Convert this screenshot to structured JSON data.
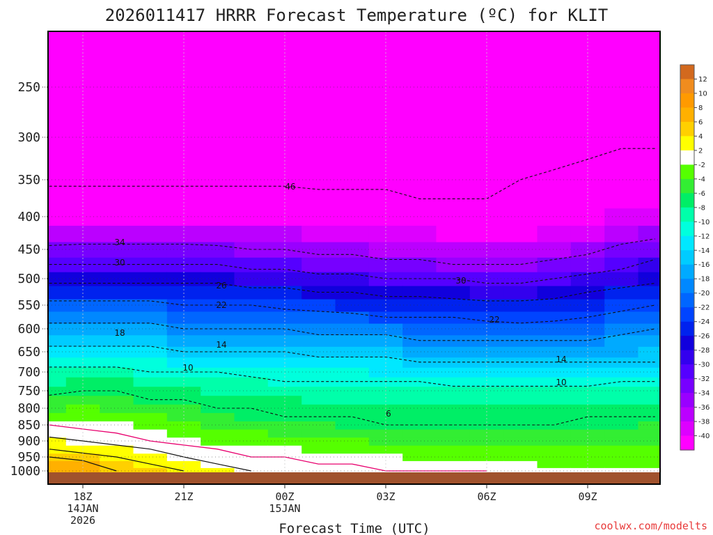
{
  "page": {
    "title": "2026011417 HRRR Forecast Temperature (ºC) for KLIT",
    "credit": "coolwx.com/modelts"
  },
  "chart_data": {
    "type": "heatmap",
    "title": "2026011417 HRRR Forecast Temperature (ºC) for KLIT",
    "xlabel": "Forecast Time (UTC)",
    "ylabel": "",
    "y_ticks": [
      "250",
      "300",
      "350",
      "400",
      "450",
      "500",
      "550",
      "600",
      "650",
      "700",
      "750",
      "800",
      "850",
      "900",
      "950",
      "1000"
    ],
    "x_ticks": [
      {
        "label": "18Z",
        "line2": "14JAN",
        "line3": "2026"
      },
      {
        "label": "21Z",
        "line2": "",
        "line3": ""
      },
      {
        "label": "00Z",
        "line2": "15JAN",
        "line3": ""
      },
      {
        "label": "03Z",
        "line2": "",
        "line3": ""
      },
      {
        "label": "06Z",
        "line2": "",
        "line3": ""
      },
      {
        "label": "09Z",
        "line2": "",
        "line3": ""
      }
    ],
    "x_hours": [
      17,
      18,
      19,
      20,
      21,
      22,
      23,
      24,
      25,
      26,
      27,
      28,
      29,
      30,
      31,
      32,
      33,
      34,
      35
    ],
    "levels": [
      1000,
      975,
      950,
      925,
      900,
      875,
      850,
      825,
      800,
      775,
      750,
      725,
      700,
      675,
      650,
      625,
      600,
      575,
      550,
      525,
      500,
      475,
      450,
      425,
      400,
      375,
      350,
      325,
      300,
      275,
      250,
      225,
      200
    ],
    "temperature_profiles": [
      [
        8,
        7,
        6,
        4,
        3,
        1,
        0,
        -2,
        -4,
        -5,
        -7,
        -8,
        -9,
        -11,
        -13,
        -15,
        -17,
        -19,
        -21,
        -24,
        -27,
        -30,
        -33,
        -37,
        -40,
        -44,
        -47,
        -50,
        -51,
        -51,
        -51,
        -50,
        -49
      ],
      [
        8,
        7,
        5,
        3,
        2,
        1,
        -1,
        -2,
        -3,
        -5,
        -6,
        -7,
        -9,
        -11,
        -13,
        -15,
        -17,
        -19,
        -21,
        -24,
        -27,
        -30,
        -33,
        -36,
        -40,
        -44,
        -47,
        -49,
        -50,
        -50,
        -50,
        -51,
        -50
      ],
      [
        6,
        5,
        4,
        3,
        1,
        0,
        -1,
        -3,
        -4,
        -5,
        -6,
        -7,
        -9,
        -11,
        -13,
        -15,
        -17,
        -19,
        -21,
        -24,
        -27,
        -30,
        -33,
        -36,
        -40,
        -44,
        -47,
        -49,
        -50,
        -50,
        -50,
        -51,
        -50
      ],
      [
        5,
        4,
        3,
        2,
        0,
        -1,
        -2,
        -3,
        -5,
        -6,
        -7,
        -8,
        -10,
        -11,
        -13,
        -15,
        -17,
        -19,
        -21,
        -24,
        -27,
        -30,
        -33,
        -36,
        -40,
        -44,
        -47,
        -49,
        -50,
        -50,
        -50,
        -51,
        -50
      ],
      [
        4,
        3,
        2,
        1,
        -1,
        -2,
        -3,
        -4,
        -5,
        -6,
        -7,
        -9,
        -10,
        -12,
        -14,
        -16,
        -18,
        -20,
        -22,
        -24,
        -27,
        -30,
        -33,
        -36,
        -40,
        -44,
        -47,
        -49,
        -50,
        -50,
        -50,
        -51,
        -50
      ],
      [
        3,
        2,
        1,
        0,
        -2,
        -3,
        -4,
        -5,
        -6,
        -7,
        -8,
        -9,
        -10,
        -12,
        -14,
        -16,
        -18,
        -20,
        -22,
        -24,
        -27,
        -30,
        -33,
        -37,
        -40,
        -44,
        -47,
        -49,
        -50,
        -50,
        -50,
        -51,
        -50
      ],
      [
        2,
        1,
        0,
        -1,
        -2,
        -3,
        -5,
        -6,
        -6,
        -7,
        -8,
        -9,
        -11,
        -12,
        -14,
        -16,
        -18,
        -20,
        -22,
        -25,
        -28,
        -31,
        -34,
        -37,
        -41,
        -44,
        -47,
        -49,
        -50,
        -50,
        -50,
        -51,
        -50
      ],
      [
        1,
        1,
        0,
        -1,
        -3,
        -4,
        -5,
        -6,
        -7,
        -7,
        -8,
        -10,
        -11,
        -12,
        -14,
        -16,
        -18,
        -20,
        -23,
        -25,
        -28,
        -31,
        -34,
        -37,
        -41,
        -44,
        -47,
        -49,
        -50,
        -50,
        -50,
        -51,
        -50
      ],
      [
        1,
        0,
        -1,
        -2,
        -3,
        -4,
        -5,
        -6,
        -7,
        -8,
        -9,
        -10,
        -11,
        -13,
        -15,
        -17,
        -19,
        -21,
        -23,
        -26,
        -29,
        -32,
        -35,
        -38,
        -41,
        -45,
        -47,
        -49,
        -50,
        -50,
        -50,
        -51,
        -50
      ],
      [
        0,
        0,
        -1,
        -2,
        -3,
        -5,
        -6,
        -6,
        -7,
        -8,
        -9,
        -10,
        -11,
        -13,
        -15,
        -17,
        -19,
        -21,
        -24,
        -26,
        -29,
        -32,
        -35,
        -38,
        -42,
        -45,
        -47,
        -49,
        -50,
        -50,
        -50,
        -51,
        -50
      ],
      [
        0,
        -1,
        -1,
        -3,
        -4,
        -5,
        -6,
        -7,
        -7,
        -8,
        -9,
        -10,
        -12,
        -13,
        -15,
        -17,
        -19,
        -22,
        -24,
        -27,
        -30,
        -33,
        -36,
        -39,
        -42,
        -45,
        -47,
        -49,
        -50,
        -50,
        -50,
        -51,
        -50
      ],
      [
        0,
        -1,
        -2,
        -3,
        -4,
        -5,
        -6,
        -7,
        -7,
        -8,
        -9,
        -10,
        -12,
        -14,
        -16,
        -18,
        -20,
        -22,
        -24,
        -27,
        -30,
        -33,
        -36,
        -39,
        -43,
        -46,
        -47,
        -48,
        -49,
        -50,
        -51,
        -51,
        -50
      ],
      [
        0,
        -1,
        -2,
        -3,
        -4,
        -5,
        -6,
        -7,
        -7,
        -8,
        -9,
        -11,
        -12,
        -14,
        -16,
        -18,
        -20,
        -22,
        -25,
        -27,
        -30,
        -34,
        -37,
        -40,
        -43,
        -46,
        -47,
        -48,
        -49,
        -50,
        -51,
        -51,
        -50
      ],
      [
        0,
        -1,
        -2,
        -3,
        -4,
        -5,
        -6,
        -7,
        -7,
        -8,
        -9,
        -11,
        -12,
        -14,
        -16,
        -18,
        -20,
        -23,
        -25,
        -28,
        -31,
        -34,
        -37,
        -40,
        -43,
        -46,
        -47,
        -48,
        -49,
        -50,
        -51,
        -51,
        -50
      ],
      [
        -1,
        -1,
        -2,
        -3,
        -4,
        -5,
        -6,
        -7,
        -7,
        -8,
        -9,
        -11,
        -12,
        -14,
        -16,
        -18,
        -21,
        -23,
        -25,
        -28,
        -31,
        -34,
        -37,
        -40,
        -43,
        -45,
        -46,
        -47,
        -49,
        -50,
        -51,
        -51,
        -50
      ],
      [
        -1,
        -2,
        -2,
        -3,
        -4,
        -5,
        -6,
        -7,
        -7,
        -8,
        -9,
        -11,
        -12,
        -14,
        -16,
        -18,
        -20,
        -23,
        -25,
        -27,
        -30,
        -33,
        -36,
        -39,
        -42,
        -44,
        -45,
        -47,
        -48,
        -50,
        -51,
        -51,
        -50
      ],
      [
        -1,
        -2,
        -2,
        -3,
        -4,
        -5,
        -6,
        -6,
        -7,
        -8,
        -9,
        -11,
        -12,
        -14,
        -16,
        -18,
        -20,
        -22,
        -24,
        -26,
        -29,
        -32,
        -35,
        -38,
        -41,
        -43,
        -44,
        -46,
        -48,
        -49,
        -51,
        -51,
        -50
      ],
      [
        -1,
        -2,
        -2,
        -3,
        -4,
        -5,
        -6,
        -6,
        -7,
        -8,
        -9,
        -10,
        -12,
        -14,
        -16,
        -17,
        -19,
        -21,
        -23,
        -25,
        -28,
        -31,
        -33,
        -36,
        -39,
        -41,
        -43,
        -45,
        -47,
        -49,
        -51,
        -51,
        -50
      ],
      [
        -1,
        -2,
        -2,
        -3,
        -4,
        -5,
        -5,
        -6,
        -7,
        -8,
        -9,
        -10,
        -12,
        -14,
        -15,
        -17,
        -18,
        -20,
        -22,
        -24,
        -27,
        -29,
        -32,
        -35,
        -38,
        -40,
        -42,
        -45,
        -47,
        -49,
        -51,
        -51,
        -50
      ]
    ],
    "contours": [
      {
        "label": "46",
        "style": "dashed"
      },
      {
        "label": "34",
        "style": "dashed"
      },
      {
        "label": "30",
        "style": "dashed"
      },
      {
        "label": "26",
        "style": "dashed"
      },
      {
        "label": "22",
        "style": "dashed"
      },
      {
        "label": "18",
        "style": "dashed"
      },
      {
        "label": "14",
        "style": "dashed"
      },
      {
        "label": "10",
        "style": "dashed"
      },
      {
        "label": "6",
        "style": "dashed"
      }
    ],
    "colorbar": {
      "ticks": [
        "12",
        "10",
        "8",
        "6",
        "4",
        "2",
        "-2",
        "-4",
        "-6",
        "-8",
        "-10",
        "-12",
        "-14",
        "-16",
        "-18",
        "-20",
        "-22",
        "-24",
        "-26",
        "-28",
        "-30",
        "-32",
        "-34",
        "-36",
        "-38",
        "-40"
      ],
      "colors": [
        "#d2691e",
        "#f08c1e",
        "#ff9a00",
        "#ffb000",
        "#ffd000",
        "#ffff00",
        "#ffffff",
        "#55ff00",
        "#33ee33",
        "#00ee66",
        "#00ffaa",
        "#00ffdd",
        "#00e8ff",
        "#00ccff",
        "#00aaff",
        "#0088ff",
        "#0066ff",
        "#0044ff",
        "#0022ee",
        "#1100dd",
        "#3300ee",
        "#5500ff",
        "#7700ff",
        "#9900ff",
        "#bb00ff",
        "#dd00ff",
        "#ff00ff"
      ]
    },
    "ground_color": "#a0522d",
    "grid": true
  }
}
